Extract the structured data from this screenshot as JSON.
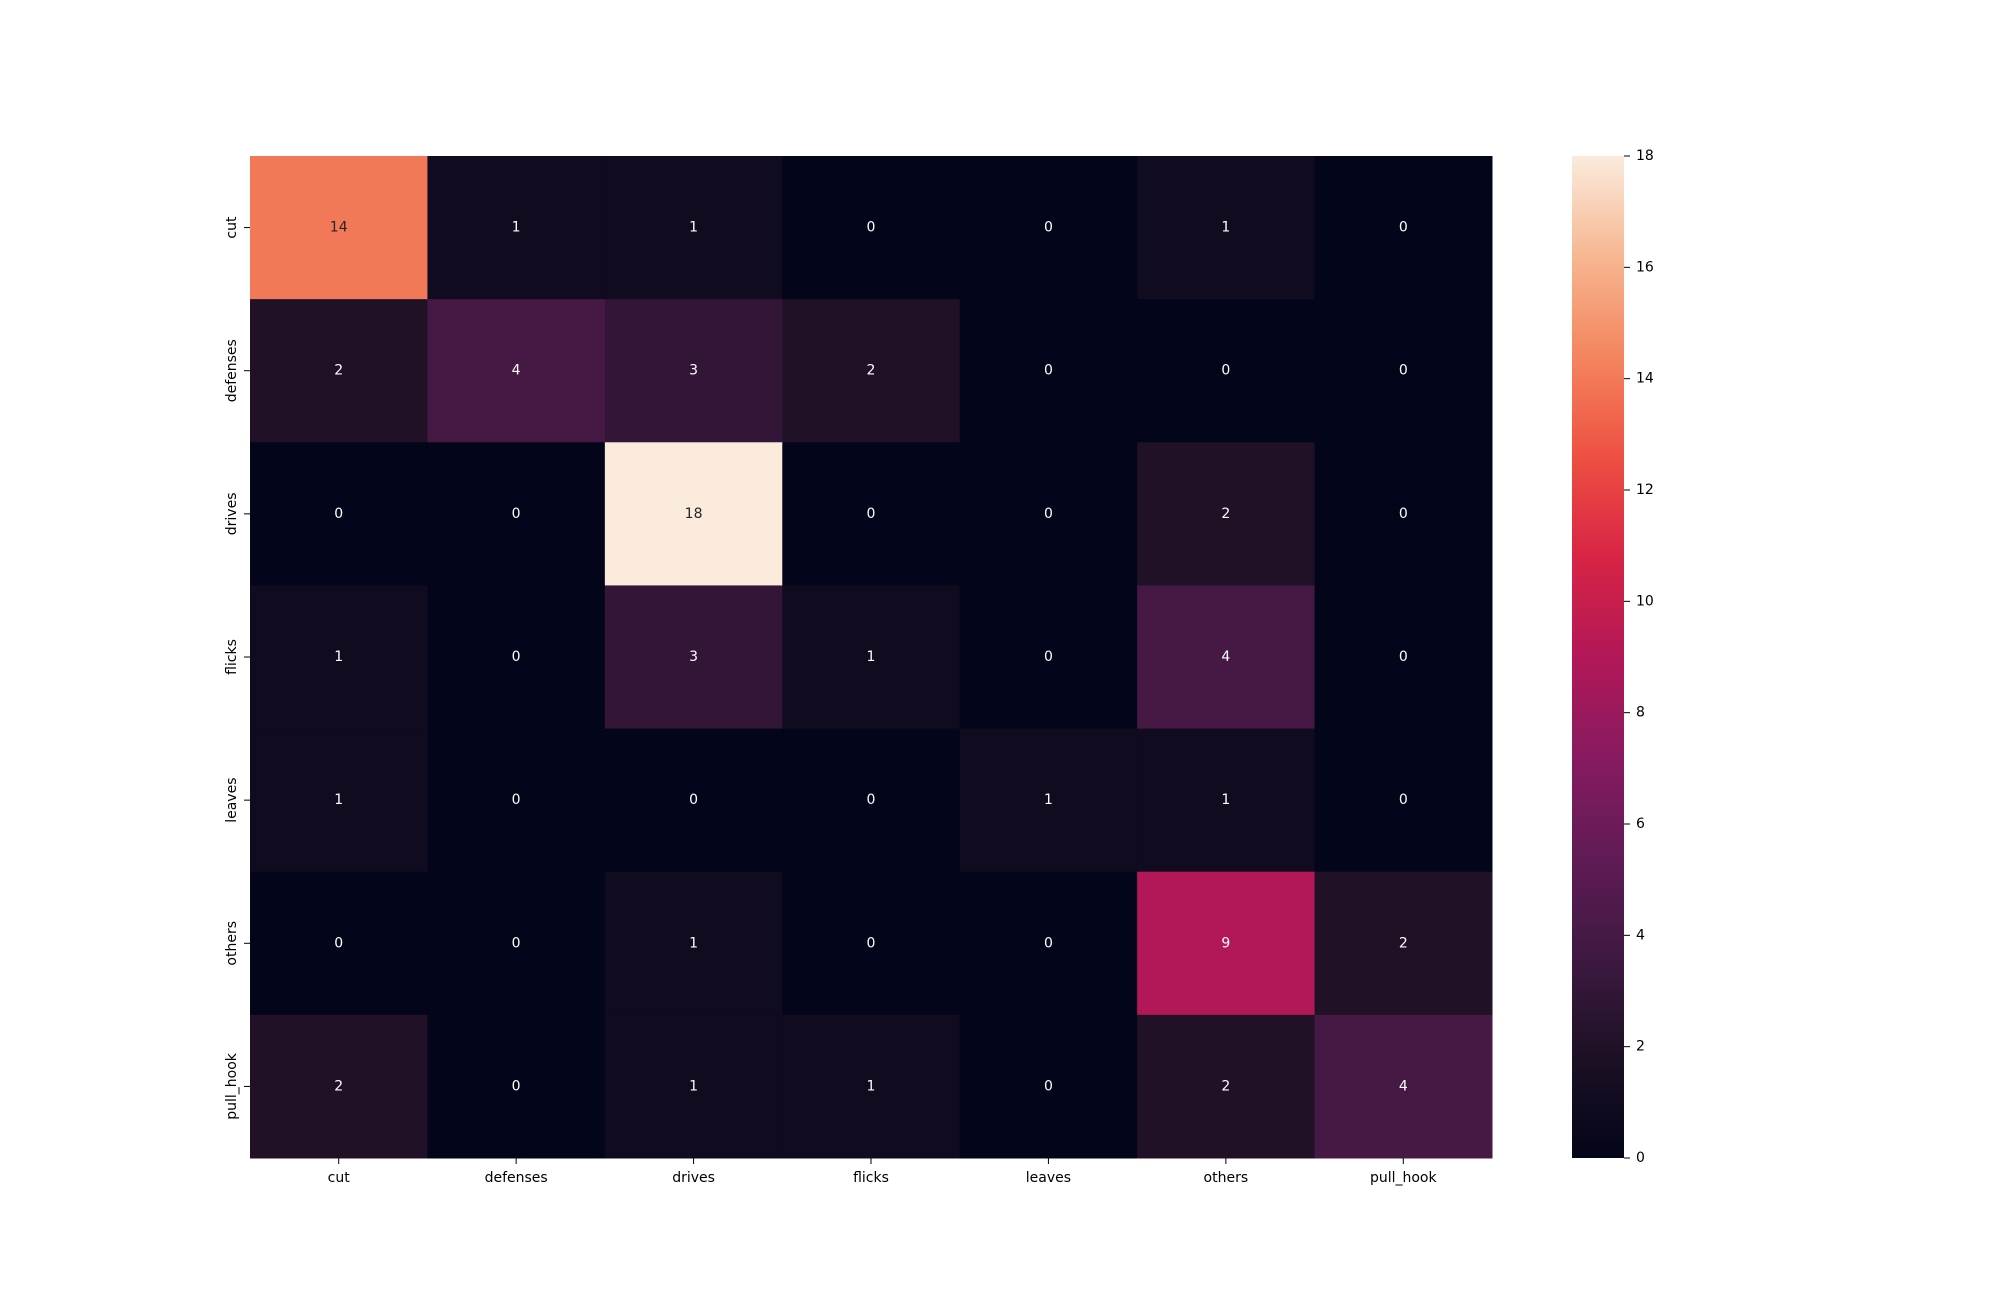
{
  "chart_data": {
    "type": "heatmap",
    "title": "",
    "xlabel": "",
    "ylabel": "",
    "x_categories": [
      "cut",
      "defenses",
      "drives",
      "flicks",
      "leaves",
      "others",
      "pull_hook"
    ],
    "y_categories": [
      "cut",
      "defenses",
      "drives",
      "flicks",
      "leaves",
      "others",
      "pull_hook"
    ],
    "values": [
      [
        14,
        1,
        1,
        0,
        0,
        1,
        0
      ],
      [
        2,
        4,
        3,
        2,
        0,
        0,
        0
      ],
      [
        0,
        0,
        18,
        0,
        0,
        2,
        0
      ],
      [
        1,
        0,
        3,
        1,
        0,
        4,
        0
      ],
      [
        1,
        0,
        0,
        0,
        1,
        1,
        0
      ],
      [
        0,
        0,
        1,
        0,
        0,
        9,
        2
      ],
      [
        2,
        0,
        1,
        1,
        0,
        2,
        4
      ]
    ],
    "colorbar": {
      "min": 0,
      "max": 18,
      "ticks": [
        0,
        2,
        4,
        6,
        8,
        10,
        12,
        14,
        16,
        18
      ],
      "colormap": "rocket"
    },
    "annotations": true,
    "grid": false,
    "legend": "colorbar-right"
  }
}
